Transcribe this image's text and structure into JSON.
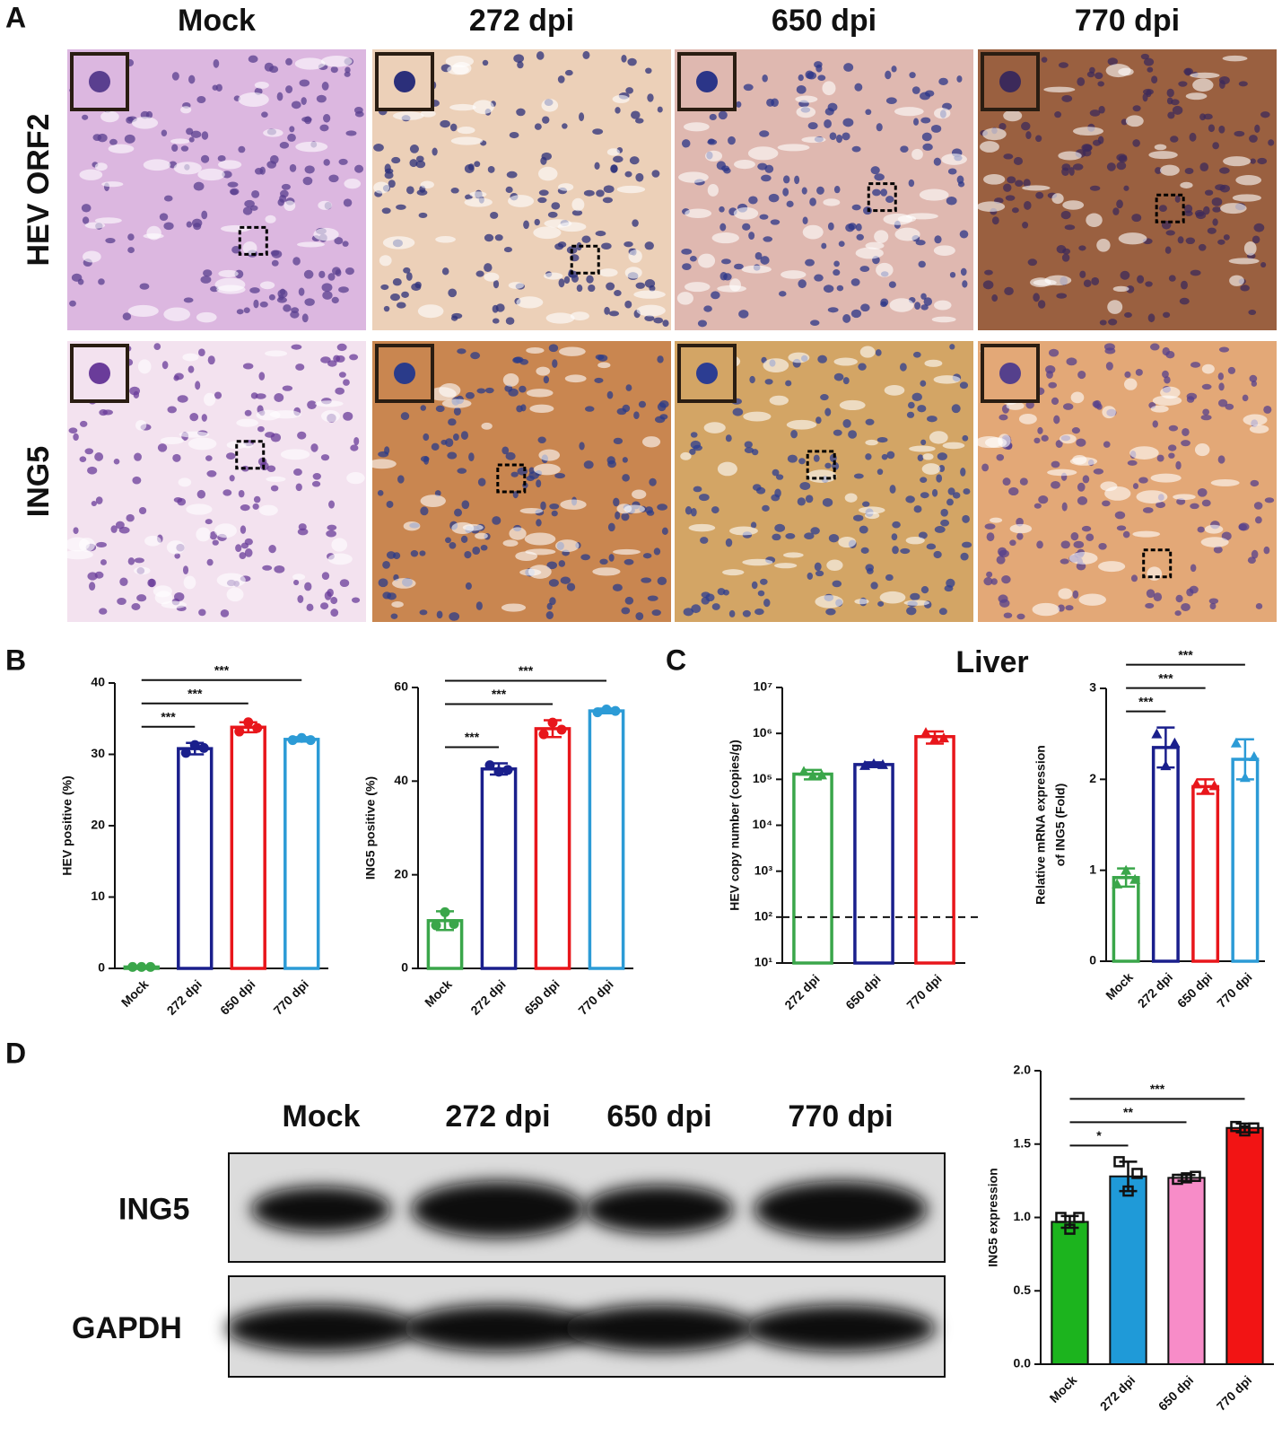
{
  "panel_labels": [
    "A",
    "B",
    "C",
    "D"
  ],
  "histology": {
    "columns": [
      "Mock",
      "272 dpi",
      "650 dpi",
      "770 dpi"
    ],
    "rows": [
      "HEV ORF2",
      "ING5"
    ]
  },
  "blot": {
    "columns": [
      "Mock",
      "272 dpi",
      "650 dpi",
      "770 dpi"
    ],
    "rows": [
      "ING5",
      "GAPDH"
    ]
  },
  "chart_data": [
    {
      "type": "bar",
      "ylabel": [
        "HEV positive (%)"
      ],
      "categories": [
        "Mock",
        "272 dpi",
        "650 dpi",
        "770 dpi"
      ],
      "values": [
        0.2,
        30.8,
        33.8,
        32.1
      ],
      "errors": [
        0.1,
        0.8,
        0.7,
        0.3
      ],
      "points": [
        [
          0.2,
          0.2,
          0.2
        ],
        [
          30.2,
          31.3,
          30.9
        ],
        [
          33.2,
          34.5,
          33.7
        ],
        [
          32.0,
          32.3,
          32.0
        ]
      ],
      "colors": [
        "#3aa64a",
        "#1a1f8c",
        "#e8161b",
        "#2c9bd6"
      ],
      "hollow": true,
      "point_shape": "circle",
      "ylim": [
        0,
        40
      ],
      "yticks": [
        0,
        10,
        20,
        30,
        40
      ],
      "log": false,
      "significance": [
        {
          "pair": [
            0,
            1
          ],
          "label": "***"
        },
        {
          "pair": [
            0,
            2
          ],
          "label": "***"
        },
        {
          "pair": [
            0,
            3
          ],
          "label": "***"
        }
      ]
    },
    {
      "type": "bar",
      "ylabel": [
        "ING5 positive (%)"
      ],
      "categories": [
        "Mock",
        "272 dpi",
        "650 dpi",
        "770 dpi"
      ],
      "values": [
        10.2,
        42.6,
        51.2,
        55.0
      ],
      "errors": [
        2.0,
        1.2,
        1.8,
        0.5
      ],
      "points": [
        [
          9.2,
          12.0,
          9.5
        ],
        [
          43.4,
          42.0,
          42.4
        ],
        [
          50.0,
          52.5,
          51.0
        ],
        [
          54.7,
          55.3,
          55.0
        ]
      ],
      "colors": [
        "#3aa64a",
        "#1a1f8c",
        "#e8161b",
        "#2c9bd6"
      ],
      "hollow": true,
      "point_shape": "circle",
      "ylim": [
        0,
        60
      ],
      "yticks": [
        0,
        20,
        40,
        60
      ],
      "log": false,
      "significance": [
        {
          "pair": [
            0,
            1
          ],
          "label": "***"
        },
        {
          "pair": [
            0,
            2
          ],
          "label": "***"
        },
        {
          "pair": [
            0,
            3
          ],
          "label": "***"
        }
      ]
    },
    {
      "type": "bar",
      "title": "Liver",
      "ylabel": [
        "HEV copy number (copies/g)"
      ],
      "categories": [
        "272 dpi",
        "650 dpi",
        "770 dpi"
      ],
      "values": [
        130000,
        210000,
        850000
      ],
      "errors": [
        30000,
        25000,
        250000
      ],
      "points": [
        [
          150000,
          120000,
          125000
        ],
        [
          200000,
          220000,
          210000
        ],
        [
          1050000,
          750000,
          800000
        ]
      ],
      "colors": [
        "#3aa64a",
        "#1a1f8c",
        "#e8161b"
      ],
      "hollow": true,
      "point_shape": "triangle",
      "ylim": [
        10,
        10000000
      ],
      "log": true,
      "reference_line": 100,
      "yticks": [
        {
          "value": 10,
          "label": "10¹"
        },
        {
          "value": 100,
          "label": "10²"
        },
        {
          "value": 1000,
          "label": "10³"
        },
        {
          "value": 10000,
          "label": "10⁴"
        },
        {
          "value": 100000,
          "label": "10⁵"
        },
        {
          "value": 1000000,
          "label": "10⁶"
        },
        {
          "value": 10000000,
          "label": "10⁷"
        }
      ]
    },
    {
      "type": "bar",
      "ylabel": [
        "Relative mRNA  expression",
        "of ING5 (Fold)"
      ],
      "categories": [
        "Mock",
        "272 dpi",
        "650 dpi",
        "770 dpi"
      ],
      "values": [
        0.92,
        2.35,
        1.92,
        2.22
      ],
      "errors": [
        0.1,
        0.22,
        0.08,
        0.22
      ],
      "points": [
        [
          0.85,
          1.0,
          0.9
        ],
        [
          2.5,
          2.15,
          2.4
        ],
        [
          1.95,
          1.88,
          1.93
        ],
        [
          2.4,
          2.02,
          2.25
        ]
      ],
      "colors": [
        "#3aa64a",
        "#1a1f8c",
        "#e8161b",
        "#2c9bd6"
      ],
      "hollow": true,
      "point_shape": "triangle",
      "ylim": [
        0,
        3
      ],
      "yticks": [
        0,
        1,
        2,
        3
      ],
      "log": false,
      "significance": [
        {
          "pair": [
            0,
            1
          ],
          "label": "***"
        },
        {
          "pair": [
            0,
            2
          ],
          "label": "***"
        },
        {
          "pair": [
            0,
            3
          ],
          "label": "***"
        }
      ]
    },
    {
      "type": "bar",
      "ylabel": [
        "ING5 expression"
      ],
      "categories": [
        "Mock",
        "272 dpi",
        "650 dpi",
        "770 dpi"
      ],
      "values": [
        0.97,
        1.28,
        1.27,
        1.61
      ],
      "errors": [
        0.04,
        0.1,
        0.02,
        0.03
      ],
      "points": [
        [
          1.0,
          0.92,
          1.0
        ],
        [
          1.38,
          1.18,
          1.3
        ],
        [
          1.26,
          1.27,
          1.28
        ],
        [
          1.62,
          1.59,
          1.61
        ]
      ],
      "colors": [
        "#1cb41e",
        "#1f9ad8",
        "#f78cc8",
        "#f21414"
      ],
      "hollow": false,
      "point_shape": "square",
      "ylim": [
        0,
        2
      ],
      "log": false,
      "yticks": [
        {
          "value": 0,
          "label": "0.0"
        },
        0.5,
        {
          "value": 1,
          "label": "1.0"
        },
        1.5,
        {
          "value": 2,
          "label": "2.0"
        }
      ],
      "significance": [
        {
          "pair": [
            0,
            1
          ],
          "label": "*"
        },
        {
          "pair": [
            0,
            2
          ],
          "label": "**"
        },
        {
          "pair": [
            0,
            3
          ],
          "label": "***"
        }
      ]
    }
  ]
}
